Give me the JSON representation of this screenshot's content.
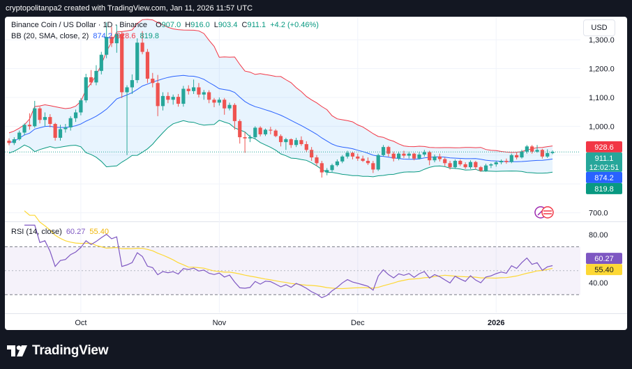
{
  "header": {
    "attribution": "cryptopolitanpa2 created with TradingView.com, Jan 11, 2026 11:57 UTC"
  },
  "legend": {
    "symbol": "Binance Coin / US Dollar · 1D · Binance",
    "o_label": "O",
    "o_value": "907.0",
    "h_label": "H",
    "h_value": "916.0",
    "l_label": "L",
    "l_value": "903.4",
    "c_label": "C",
    "c_value": "911.1",
    "change": "+4.2 (+0.46%)",
    "bb_label": "BB (20, SMA, close, 2)",
    "bb_basis": "874.2",
    "bb_upper": "928.6",
    "bb_lower": "819.8",
    "rsi_label": "RSI (14, close)",
    "rsi_value": "60.27",
    "rsi_ma": "55.40"
  },
  "currency_button": "USD",
  "footer": {
    "brand": "TradingView"
  },
  "colors": {
    "up": "#26a69a",
    "down": "#ef5350",
    "bb_upper": "#f23645",
    "bb_basis": "#2962ff",
    "bb_lower": "#089981",
    "bb_fill": "#2196f3",
    "rsi": "#7e57c2",
    "rsi_ma": "#fdd835"
  },
  "chart_data": [
    {
      "type": "candlestick",
      "title": "Binance Coin / US Dollar · 1D · Binance",
      "ylim": [
        670,
        1380
      ],
      "y_ticks": [
        "1,300.0",
        "1,200.0",
        "1,100.0",
        "1,000.0",
        "700.0"
      ],
      "x_ticks": [
        "Oct",
        "Nov",
        "Dec",
        "2026"
      ],
      "price_tags": [
        {
          "name": "BB upper",
          "value": "928.6"
        },
        {
          "name": "Last",
          "value": "911.1",
          "countdown": "12:02:51"
        },
        {
          "name": "BB basis",
          "value": "874.2"
        },
        {
          "name": "BB lower",
          "value": "819.8"
        }
      ],
      "candles": [
        [
          950,
          958,
          934,
          942
        ],
        [
          942,
          962,
          935,
          955
        ],
        [
          955,
          985,
          950,
          978
        ],
        [
          978,
          1010,
          968,
          1005
        ],
        [
          1005,
          1045,
          988,
          1000
        ],
        [
          1000,
          1088,
          995,
          1062
        ],
        [
          1062,
          1068,
          1010,
          1022
        ],
        [
          1022,
          1048,
          1000,
          1032
        ],
        [
          1032,
          1042,
          996,
          1008
        ],
        [
          1008,
          1012,
          950,
          960
        ],
        [
          960,
          1005,
          950,
          990
        ],
        [
          990,
          1008,
          978,
          996
        ],
        [
          996,
          1035,
          985,
          1028
        ],
        [
          1028,
          1058,
          1015,
          1048
        ],
        [
          1048,
          1098,
          1038,
          1090
        ],
        [
          1090,
          1182,
          1082,
          1170
        ],
        [
          1170,
          1195,
          1142,
          1152
        ],
        [
          1152,
          1212,
          1142,
          1192
        ],
        [
          1192,
          1258,
          1180,
          1248
        ],
        [
          1248,
          1360,
          1236,
          1310
        ],
        [
          1310,
          1345,
          1275,
          1288
        ],
        [
          1288,
          1352,
          1255,
          1320
        ],
        [
          1320,
          1330,
          1098,
          1118
        ],
        [
          1118,
          1142,
          900,
          1135
        ],
        [
          1135,
          1180,
          1112,
          1160
        ],
        [
          1160,
          1305,
          1150,
          1290
        ],
        [
          1290,
          1330,
          1250,
          1258
        ],
        [
          1258,
          1268,
          1150,
          1165
        ],
        [
          1165,
          1185,
          1135,
          1150
        ],
        [
          1150,
          1178,
          1035,
          1070
        ],
        [
          1070,
          1118,
          1055,
          1105
        ],
        [
          1105,
          1118,
          1080,
          1092
        ],
        [
          1092,
          1110,
          1075,
          1102
        ],
        [
          1102,
          1112,
          1068,
          1078
        ],
        [
          1078,
          1140,
          1068,
          1130
        ],
        [
          1130,
          1142,
          1110,
          1122
        ],
        [
          1122,
          1162,
          1112,
          1135
        ],
        [
          1135,
          1150,
          1100,
          1110
        ],
        [
          1110,
          1126,
          1092,
          1118
        ],
        [
          1118,
          1125,
          1080,
          1092
        ],
        [
          1092,
          1098,
          1066,
          1082
        ],
        [
          1082,
          1100,
          1072,
          1092
        ],
        [
          1092,
          1098,
          1040,
          1062
        ],
        [
          1062,
          1082,
          1055,
          1074
        ],
        [
          1074,
          1080,
          988,
          1018
        ],
        [
          1018,
          1024,
          940,
          962
        ],
        [
          962,
          980,
          908,
          958
        ],
        [
          958,
          970,
          945,
          962
        ],
        [
          962,
          1000,
          958,
          995
        ],
        [
          995,
          1000,
          965,
          972
        ],
        [
          972,
          992,
          966,
          988
        ],
        [
          988,
          998,
          972,
          985
        ],
        [
          985,
          990,
          962,
          966
        ],
        [
          966,
          972,
          930,
          945
        ],
        [
          945,
          960,
          918,
          955
        ],
        [
          955,
          958,
          925,
          935
        ],
        [
          935,
          960,
          928,
          952
        ],
        [
          952,
          965,
          932,
          938
        ],
        [
          938,
          948,
          910,
          918
        ],
        [
          918,
          928,
          880,
          892
        ],
        [
          892,
          900,
          862,
          872
        ],
        [
          872,
          880,
          822,
          840
        ],
        [
          840,
          855,
          830,
          848
        ],
        [
          848,
          870,
          842,
          865
        ],
        [
          865,
          885,
          860,
          878
        ],
        [
          878,
          900,
          872,
          895
        ],
        [
          895,
          915,
          888,
          908
        ],
        [
          908,
          912,
          885,
          895
        ],
        [
          895,
          905,
          880,
          888
        ],
        [
          888,
          898,
          876,
          880
        ],
        [
          880,
          892,
          866,
          872
        ],
        [
          872,
          880,
          838,
          850
        ],
        [
          850,
          905,
          845,
          900
        ],
        [
          900,
          935,
          895,
          928
        ],
        [
          928,
          932,
          895,
          905
        ],
        [
          905,
          912,
          878,
          888
        ],
        [
          888,
          912,
          882,
          905
        ],
        [
          905,
          915,
          890,
          898
        ],
        [
          898,
          912,
          888,
          905
        ],
        [
          905,
          908,
          882,
          888
        ],
        [
          888,
          910,
          885,
          902
        ],
        [
          902,
          918,
          895,
          910
        ],
        [
          910,
          915,
          865,
          882
        ],
        [
          882,
          902,
          875,
          895
        ],
        [
          895,
          905,
          878,
          886
        ],
        [
          886,
          892,
          862,
          872
        ],
        [
          872,
          880,
          850,
          858
        ],
        [
          858,
          885,
          852,
          880
        ],
        [
          880,
          885,
          862,
          868
        ],
        [
          868,
          875,
          852,
          858
        ],
        [
          858,
          882,
          852,
          876
        ],
        [
          876,
          880,
          850,
          858
        ],
        [
          858,
          862,
          842,
          846
        ],
        [
          846,
          870,
          842,
          864
        ],
        [
          864,
          872,
          855,
          868
        ],
        [
          868,
          880,
          860,
          875
        ],
        [
          875,
          885,
          868,
          880
        ],
        [
          880,
          888,
          870,
          876
        ],
        [
          876,
          905,
          872,
          900
        ],
        [
          900,
          910,
          885,
          892
        ],
        [
          892,
          918,
          888,
          912
        ],
        [
          912,
          935,
          905,
          930
        ],
        [
          930,
          935,
          905,
          912
        ],
        [
          912,
          935,
          908,
          918
        ],
        [
          918,
          922,
          888,
          895
        ],
        [
          895,
          920,
          890,
          907
        ],
        [
          907,
          916,
          903,
          911
        ]
      ]
    },
    {
      "type": "line",
      "title": "RSI (14, close)",
      "ylim": [
        15,
        90
      ],
      "y_ticks": [
        "80.00",
        "40.00"
      ],
      "bands": [
        70,
        30
      ],
      "price_tags": [
        {
          "name": "RSI",
          "value": "60.27"
        },
        {
          "name": "RSI MA",
          "value": "55.40"
        }
      ]
    }
  ]
}
